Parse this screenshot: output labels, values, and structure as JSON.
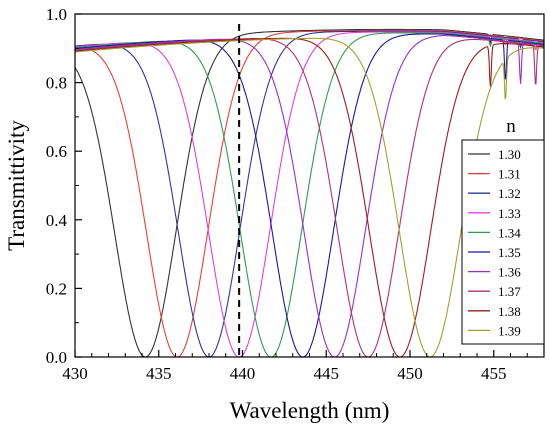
{
  "chart_data": {
    "type": "line",
    "title": "",
    "xlabel": "Wavelength (nm)",
    "ylabel": "Transmittivity",
    "xlim": [
      430,
      458
    ],
    "ylim": [
      0.0,
      1.0
    ],
    "x_ticks": [
      "430",
      "435",
      "440",
      "445",
      "450",
      "455"
    ],
    "y_ticks": [
      "0.0",
      "0.2",
      "0.4",
      "0.6",
      "0.8",
      "1.0"
    ],
    "legend_title": "n",
    "legend_position": "right",
    "grid": false,
    "dashed_marker_x": 439.8,
    "resonance_width_nm": 2.6,
    "series": [
      {
        "name": "1.30",
        "color": "#333333",
        "dip_x": 434.2,
        "dip_y": 0.0
      },
      {
        "name": "1.31",
        "color": "#e8413c",
        "dip_x": 436.1,
        "dip_y": 0.0
      },
      {
        "name": "1.32",
        "color": "#2b3a9b",
        "dip_x": 438.0,
        "dip_y": 0.0
      },
      {
        "name": "1.33",
        "color": "#e040e0",
        "dip_x": 439.8,
        "dip_y": 0.0
      },
      {
        "name": "1.34",
        "color": "#2e9e4a",
        "dip_x": 441.7,
        "dip_y": 0.0
      },
      {
        "name": "1.35",
        "color": "#1a1a9a",
        "dip_x": 443.6,
        "dip_y": 0.0
      },
      {
        "name": "1.36",
        "color": "#9b2fc4",
        "dip_x": 445.5,
        "dip_y": 0.0
      },
      {
        "name": "1.37",
        "color": "#b0336f",
        "dip_x": 447.5,
        "dip_y": 0.0
      },
      {
        "name": "1.38",
        "color": "#9b1d1d",
        "dip_x": 449.4,
        "dip_y": 0.0
      },
      {
        "name": "1.39",
        "color": "#a3a032",
        "dip_x": 451.2,
        "dip_y": 0.0
      }
    ]
  }
}
